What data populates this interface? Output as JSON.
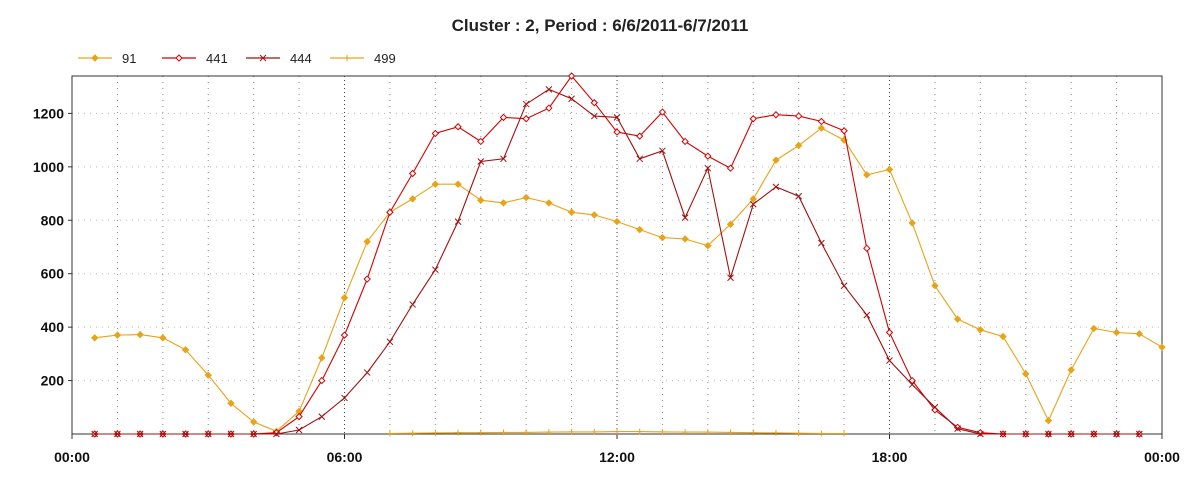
{
  "chart_data": {
    "type": "line",
    "title": "Cluster : 2, Period : 6/6/2011-6/7/2011",
    "xlabel": "",
    "ylabel": "",
    "x_tick_labels": [
      "00:00",
      "06:00",
      "12:00",
      "18:00",
      "00:00"
    ],
    "x_tick_hours": [
      0,
      6,
      12,
      18,
      24
    ],
    "xlim": [
      0,
      24
    ],
    "ylim": [
      0,
      1340
    ],
    "y_ticks": [
      200,
      400,
      600,
      800,
      1000,
      1200
    ],
    "grid": true,
    "legend_position": "top-left",
    "series": [
      {
        "name": "91",
        "color": "#E8A317",
        "marker": "diamond",
        "x": [
          0.5,
          1,
          1.5,
          2,
          2.5,
          3,
          3.5,
          4,
          4.5,
          5,
          5.5,
          6,
          6.5,
          7,
          7.5,
          8,
          8.5,
          9,
          9.5,
          10,
          10.5,
          11,
          11.5,
          12,
          12.5,
          13,
          13.5,
          14,
          14.5,
          15,
          15.5,
          16,
          16.5,
          17,
          17.5,
          18,
          18.5,
          19,
          19.5,
          20,
          20.5,
          21,
          21.5,
          22,
          22.5,
          23,
          23.5,
          24
        ],
        "values": [
          360,
          370,
          372,
          360,
          315,
          220,
          115,
          45,
          10,
          85,
          285,
          510,
          720,
          830,
          880,
          935,
          935,
          875,
          865,
          885,
          865,
          830,
          820,
          795,
          765,
          735,
          730,
          705,
          785,
          880,
          1025,
          1080,
          1145,
          1100,
          970,
          990,
          790,
          555,
          430,
          390,
          365,
          225,
          50,
          240,
          395,
          380,
          375,
          325
        ]
      },
      {
        "name": "441",
        "color": "#D40000",
        "marker": "diamond-open",
        "x": [
          0.5,
          1,
          1.5,
          2,
          2.5,
          3,
          3.5,
          4,
          4.5,
          5,
          5.5,
          6,
          6.5,
          7,
          7.5,
          8,
          8.5,
          9,
          9.5,
          10,
          10.5,
          11,
          11.5,
          12,
          12.5,
          13,
          13.5,
          14,
          14.5,
          15,
          15.5,
          16,
          16.5,
          17,
          17.5,
          18,
          18.5,
          19,
          19.5,
          20,
          20.5,
          21,
          21.5,
          22,
          22.5,
          23,
          23.5
        ],
        "values": [
          0,
          0,
          0,
          0,
          0,
          0,
          0,
          0,
          5,
          65,
          200,
          370,
          580,
          830,
          975,
          1125,
          1150,
          1095,
          1185,
          1180,
          1220,
          1340,
          1240,
          1130,
          1115,
          1205,
          1095,
          1040,
          995,
          1180,
          1195,
          1190,
          1170,
          1135,
          695,
          380,
          200,
          90,
          25,
          5,
          0,
          0,
          0,
          0,
          0,
          0,
          0
        ]
      },
      {
        "name": "444",
        "color": "#A01010",
        "marker": "cross",
        "x": [
          0.5,
          1,
          1.5,
          2,
          2.5,
          3,
          3.5,
          4,
          4.5,
          5,
          5.5,
          6,
          6.5,
          7,
          7.5,
          8,
          8.5,
          9,
          9.5,
          10,
          10.5,
          11,
          11.5,
          12,
          12.5,
          13,
          13.5,
          14,
          14.5,
          15,
          15.5,
          16,
          16.5,
          17,
          17.5,
          18,
          18.5,
          19,
          19.5,
          20,
          20.5,
          21,
          21.5,
          22,
          22.5,
          23,
          23.5
        ],
        "values": [
          0,
          0,
          0,
          0,
          0,
          0,
          0,
          0,
          0,
          15,
          65,
          135,
          230,
          345,
          485,
          615,
          795,
          1020,
          1030,
          1235,
          1290,
          1255,
          1190,
          1185,
          1030,
          1060,
          810,
          995,
          585,
          860,
          925,
          890,
          715,
          555,
          445,
          275,
          185,
          100,
          20,
          0,
          0,
          0,
          0,
          0,
          0,
          0,
          0
        ]
      },
      {
        "name": "499",
        "color": "#E8A317",
        "marker": "plus",
        "x": [
          7,
          7.5,
          8,
          8.5,
          9,
          9.5,
          10,
          10.5,
          11,
          11.5,
          12,
          12.5,
          13,
          13.5,
          14,
          14.5,
          15,
          15.5,
          16,
          16.5,
          17
        ],
        "values": [
          2,
          3,
          4,
          5,
          5,
          6,
          6,
          7,
          8,
          8,
          9,
          9,
          8,
          7,
          7,
          6,
          5,
          4,
          3,
          2,
          2
        ]
      }
    ]
  }
}
